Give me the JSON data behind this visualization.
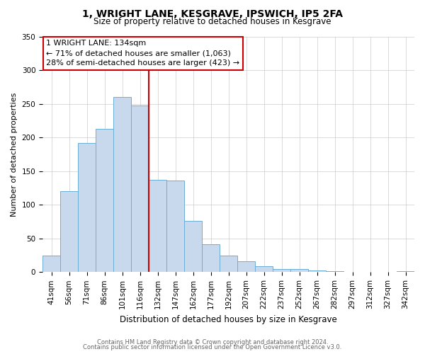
{
  "title": "1, WRIGHT LANE, KESGRAVE, IPSWICH, IP5 2FA",
  "subtitle": "Size of property relative to detached houses in Kesgrave",
  "xlabel": "Distribution of detached houses by size in Kesgrave",
  "ylabel": "Number of detached properties",
  "bar_labels": [
    "41sqm",
    "56sqm",
    "71sqm",
    "86sqm",
    "101sqm",
    "116sqm",
    "132sqm",
    "147sqm",
    "162sqm",
    "177sqm",
    "192sqm",
    "207sqm",
    "222sqm",
    "237sqm",
    "252sqm",
    "267sqm",
    "282sqm",
    "297sqm",
    "312sqm",
    "327sqm",
    "342sqm"
  ],
  "bar_values": [
    25,
    120,
    192,
    213,
    260,
    247,
    137,
    136,
    76,
    41,
    25,
    16,
    9,
    5,
    5,
    2,
    1,
    0,
    0,
    0,
    1
  ],
  "bar_color": "#c8d9ee",
  "bar_edge_color": "#6baed6",
  "vline_color": "#cc0000",
  "annotation_title": "1 WRIGHT LANE: 134sqm",
  "annotation_line1": "← 71% of detached houses are smaller (1,063)",
  "annotation_line2": "28% of semi-detached houses are larger (423) →",
  "annotation_box_color": "#ffffff",
  "annotation_box_edge": "#cc0000",
  "ylim": [
    0,
    350
  ],
  "yticks": [
    0,
    50,
    100,
    150,
    200,
    250,
    300,
    350
  ],
  "footer1": "Contains HM Land Registry data © Crown copyright and database right 2024.",
  "footer2": "Contains public sector information licensed under the Open Government Licence v3.0.",
  "background_color": "#ffffff",
  "grid_color": "#cccccc",
  "title_fontsize": 10,
  "subtitle_fontsize": 8.5,
  "ylabel_fontsize": 8,
  "xlabel_fontsize": 8.5,
  "tick_fontsize": 7.5,
  "ann_fontsize": 8.0,
  "footer_fontsize": 6.0
}
